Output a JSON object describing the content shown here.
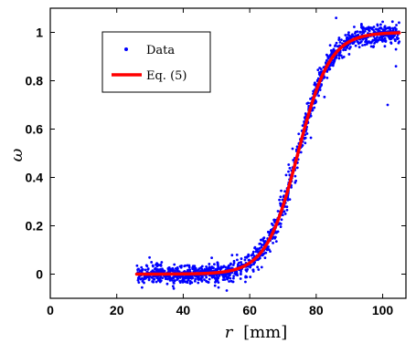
{
  "chart_data": {
    "type": "scatter",
    "xlabel_symbol": "r",
    "xlabel_unit": "[mm]",
    "ylabel": "ω",
    "xlim": [
      0,
      107
    ],
    "ylim": [
      -0.1,
      1.1
    ],
    "xticks": [
      0,
      20,
      40,
      60,
      80,
      100
    ],
    "yticks": [
      0,
      0.2,
      0.4,
      0.6,
      0.8,
      1
    ],
    "ytick_labels": [
      "0",
      "0.2",
      "0.4",
      "0.6",
      "0.8",
      "1"
    ],
    "grid": false,
    "legend_position": "top-left",
    "series": [
      {
        "name": "Data",
        "kind": "scatter",
        "color": "#0000ff",
        "x_range": [
          26,
          105
        ],
        "model": "logistic",
        "model_midpoint": 74.5,
        "model_scale": 4.8,
        "scatter_spread": 0.02,
        "n_points": 1400,
        "outliers": [
          {
            "x": 101.5,
            "y": 0.7
          },
          {
            "x": 104,
            "y": 0.86
          },
          {
            "x": 86,
            "y": 1.06
          },
          {
            "x": 104,
            "y": 0.93
          }
        ]
      },
      {
        "name": "Eq. (5)",
        "kind": "line",
        "color": "#ff0000",
        "x_range": [
          26,
          105
        ],
        "model": "logistic",
        "model_midpoint": 74.5,
        "model_scale": 4.8
      }
    ]
  }
}
